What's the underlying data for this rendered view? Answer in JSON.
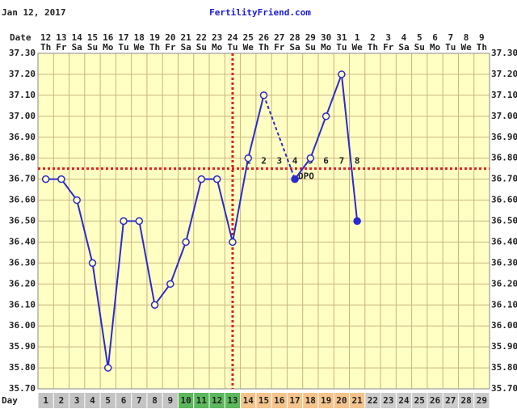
{
  "chart_data": {
    "type": "line",
    "date": "Jan 12, 2017",
    "title": "FertilityFriend.com",
    "date_row_label": "Date",
    "day_row_label": "Day",
    "dates": [
      "12",
      "13",
      "14",
      "15",
      "16",
      "17",
      "18",
      "19",
      "20",
      "21",
      "22",
      "23",
      "24",
      "25",
      "26",
      "27",
      "28",
      "29",
      "30",
      "31",
      "1",
      "2",
      "3",
      "4",
      "5",
      "6",
      "7",
      "8",
      "9"
    ],
    "weekdays": [
      "Th",
      "Fr",
      "Sa",
      "Su",
      "Mo",
      "Tu",
      "We",
      "Th",
      "Fr",
      "Sa",
      "Su",
      "Mo",
      "Tu",
      "We",
      "Th",
      "Fr",
      "Sa",
      "Su",
      "Mo",
      "Tu",
      "We",
      "Th",
      "Fr",
      "Sa",
      "Su",
      "Mo",
      "Tu",
      "We",
      "Th"
    ],
    "categories": [
      1,
      2,
      3,
      4,
      5,
      6,
      7,
      8,
      9,
      10,
      11,
      12,
      13,
      14,
      15,
      16,
      17,
      18,
      19,
      20,
      21,
      22,
      23,
      24,
      25,
      26,
      27,
      28,
      29
    ],
    "series": [
      {
        "name": "Temperature",
        "color": "#2a2ad0",
        "values": [
          36.7,
          36.7,
          36.6,
          36.3,
          35.8,
          36.5,
          36.5,
          36.1,
          36.2,
          36.4,
          36.7,
          36.7,
          36.4,
          36.8,
          37.1,
          null,
          36.7,
          36.8,
          37.0,
          37.2,
          36.5,
          null,
          null,
          null,
          null,
          null,
          null,
          null,
          null
        ]
      }
    ],
    "filled_days": [
      17,
      21
    ],
    "ylim": [
      35.7,
      37.3
    ],
    "yticks": [
      {
        "value": 35.7,
        "label": "35.70"
      },
      {
        "value": 35.8,
        "label": "35.80"
      },
      {
        "value": 35.9,
        "label": "35.90"
      },
      {
        "value": 36.0,
        "label": "36.00"
      },
      {
        "value": 36.1,
        "label": "36.10"
      },
      {
        "value": 36.2,
        "label": "36.20"
      },
      {
        "value": 36.3,
        "label": "36.30"
      },
      {
        "value": 36.4,
        "label": "36.40"
      },
      {
        "value": 36.5,
        "label": "36.50"
      },
      {
        "value": 36.6,
        "label": "36.60"
      },
      {
        "value": 36.7,
        "label": "36.70"
      },
      {
        "value": 36.8,
        "label": "36.80"
      },
      {
        "value": 36.9,
        "label": "36.90"
      },
      {
        "value": 37.0,
        "label": "37.00"
      },
      {
        "value": 37.1,
        "label": "37.10"
      },
      {
        "value": 37.2,
        "label": "37.20"
      },
      {
        "value": 37.3,
        "label": "37.30"
      }
    ],
    "grid": true,
    "coverline": 36.75,
    "ovulation_day": 13,
    "reference_color": "#e02020",
    "dpo_start_day": 14,
    "dpo_labels": [
      "1",
      "2",
      "3",
      "4",
      "5",
      "6",
      "7",
      "8"
    ],
    "dpo_text": "DPO",
    "dpo_text_day": 17,
    "day_row_colors": [
      {
        "from": 1,
        "to": 9,
        "color": "#c4c4c4"
      },
      {
        "from": 10,
        "to": 13,
        "color": "#5cb85c"
      },
      {
        "from": 14,
        "to": 21,
        "color": "#f5c48c"
      },
      {
        "from": 22,
        "to": 29,
        "color": "#cccccc"
      }
    ]
  }
}
